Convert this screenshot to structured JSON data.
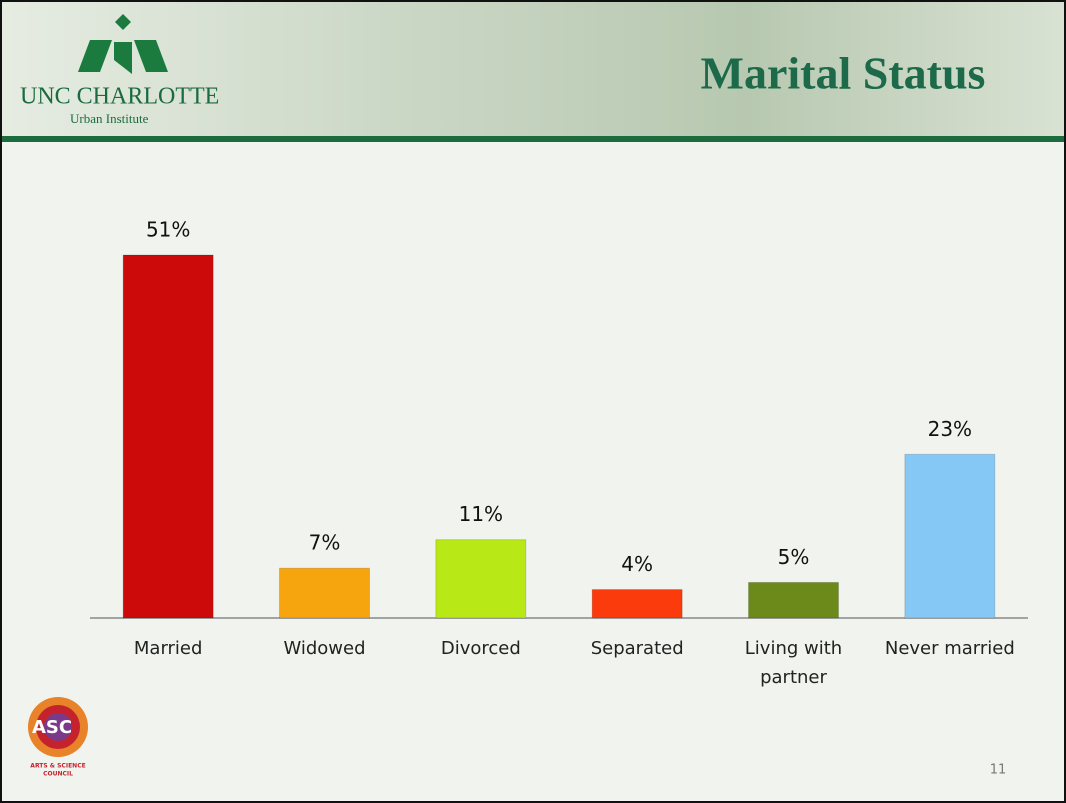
{
  "header": {
    "logo_title": "UNC CHARLOTTE",
    "logo_subtitle": "Urban Institute"
  },
  "chart_data": {
    "type": "bar",
    "title": "Marital Status",
    "categories": [
      "Married",
      "Widowed",
      "Divorced",
      "Separated",
      "Living with partner",
      "Never married"
    ],
    "values": [
      51,
      7,
      11,
      4,
      5,
      23
    ],
    "value_labels": [
      "51%",
      "7%",
      "11%",
      "4%",
      "5%",
      "23%"
    ],
    "colors": [
      "#cc0a0a",
      "#f7a50f",
      "#b8e815",
      "#fc3b0c",
      "#6b8a1a",
      "#86c8f5"
    ]
  },
  "footer": {
    "asc_logo": "ASC",
    "asc_caption": [
      "ARTS & SCIENCE",
      "COUNCIL"
    ],
    "page_number": "11"
  }
}
